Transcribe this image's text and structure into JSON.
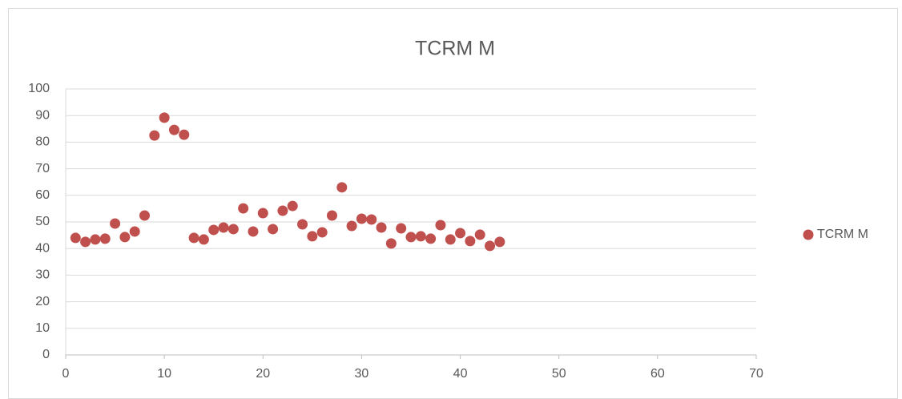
{
  "chart_data": {
    "type": "scatter",
    "title": "TCRM M",
    "series": [
      {
        "name": "TCRM M",
        "color": "#c0504d",
        "x": [
          1,
          2,
          3,
          4,
          5,
          6,
          7,
          8,
          9,
          10,
          11,
          12,
          13,
          14,
          15,
          16,
          17,
          18,
          19,
          20,
          21,
          22,
          23,
          24,
          25,
          26,
          27,
          28,
          29,
          30,
          31,
          32,
          33,
          34,
          35,
          36,
          37,
          38,
          39,
          40,
          41,
          42,
          43,
          44
        ],
        "values": [
          44.0,
          42.5,
          43.4,
          43.7,
          49.4,
          44.3,
          46.4,
          52.4,
          82.5,
          89.2,
          84.6,
          82.8,
          44.0,
          43.4,
          47.0,
          47.9,
          47.3,
          55.1,
          46.4,
          53.3,
          47.3,
          54.2,
          56.0,
          49.1,
          44.6,
          46.1,
          52.4,
          63.0,
          48.5,
          51.2,
          50.9,
          47.9,
          41.9,
          47.6,
          44.3,
          44.6,
          43.7,
          48.8,
          43.4,
          45.8,
          42.8,
          45.2,
          41.0,
          42.5
        ]
      }
    ],
    "xlim": [
      0,
      70
    ],
    "xticks": [
      0,
      10,
      20,
      30,
      40,
      50,
      60,
      70
    ],
    "ylim": [
      0,
      100
    ],
    "yticks": [
      0,
      10,
      20,
      30,
      40,
      50,
      60,
      70,
      80,
      90,
      100
    ],
    "grid": true,
    "legend": "right"
  }
}
